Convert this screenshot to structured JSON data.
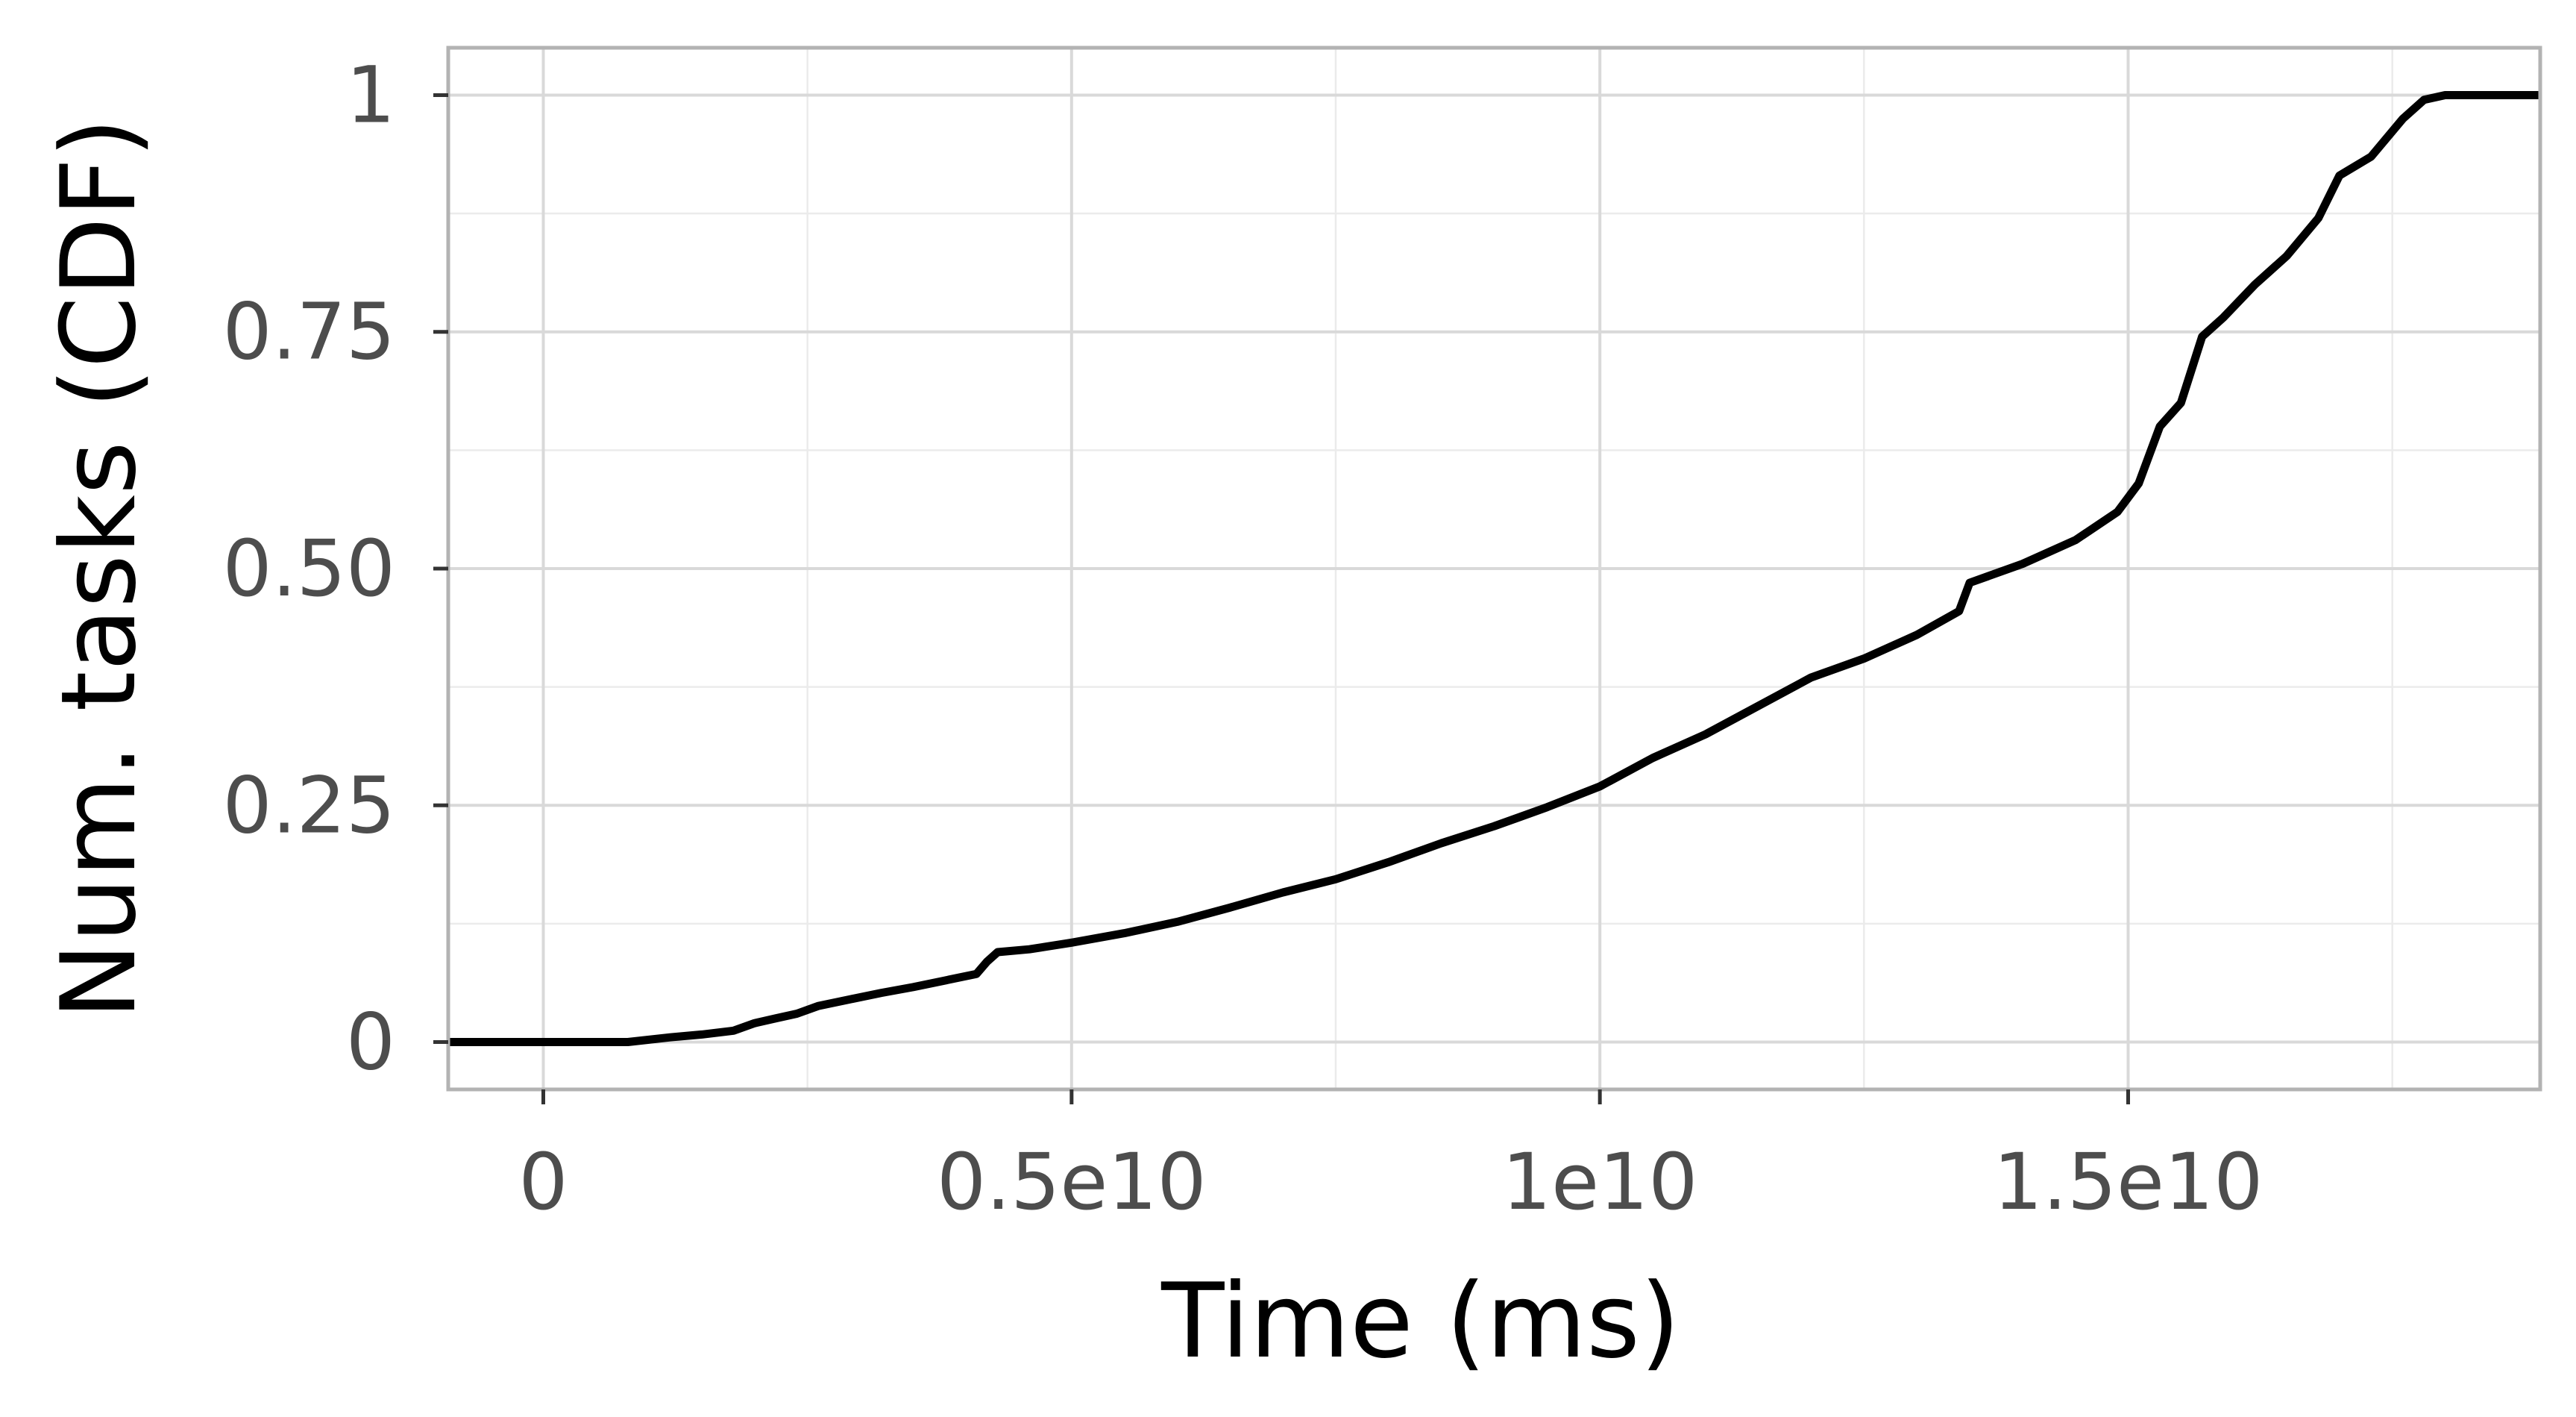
{
  "chart_data": {
    "type": "line",
    "xlabel": "Time (ms)",
    "ylabel": "Num. tasks (CDF)",
    "xlim": [
      -900000000,
      18900000000
    ],
    "ylim": [
      -0.05,
      1.05
    ],
    "grid": true,
    "x_ticks": [
      {
        "value": 0,
        "label": "0"
      },
      {
        "value": 5000000000,
        "label": "0.5e10"
      },
      {
        "value": 10000000000,
        "label": "1e10"
      },
      {
        "value": 15000000000,
        "label": "1.5e10"
      }
    ],
    "y_ticks": [
      {
        "value": 0,
        "label": "0"
      },
      {
        "value": 0.25,
        "label": "0.25"
      },
      {
        "value": 0.5,
        "label": "0.50"
      },
      {
        "value": 0.75,
        "label": "0.75"
      },
      {
        "value": 1,
        "label": "1"
      }
    ],
    "series": [
      {
        "color": "#000000",
        "points": [
          [
            -900000000,
            0
          ],
          [
            800000000,
            0
          ],
          [
            1200000000,
            0.005
          ],
          [
            1500000000,
            0.008
          ],
          [
            1800000000,
            0.012
          ],
          [
            2000000000,
            0.02
          ],
          [
            2200000000,
            0.025
          ],
          [
            2400000000,
            0.03
          ],
          [
            2600000000,
            0.038
          ],
          [
            2900000000,
            0.045
          ],
          [
            3200000000,
            0.052
          ],
          [
            3500000000,
            0.058
          ],
          [
            3800000000,
            0.065
          ],
          [
            4100000000,
            0.072
          ],
          [
            4200000000,
            0.085
          ],
          [
            4300000000,
            0.095
          ],
          [
            4600000000,
            0.098
          ],
          [
            5000000000,
            0.105
          ],
          [
            5500000000,
            0.115
          ],
          [
            6000000000,
            0.127
          ],
          [
            6500000000,
            0.142
          ],
          [
            7000000000,
            0.158
          ],
          [
            7500000000,
            0.172
          ],
          [
            8000000000,
            0.19
          ],
          [
            8500000000,
            0.21
          ],
          [
            9000000000,
            0.228
          ],
          [
            9500000000,
            0.248
          ],
          [
            10000000000,
            0.27
          ],
          [
            10500000000,
            0.3
          ],
          [
            11000000000,
            0.325
          ],
          [
            11500000000,
            0.355
          ],
          [
            12000000000,
            0.385
          ],
          [
            12500000000,
            0.405
          ],
          [
            13000000000,
            0.43
          ],
          [
            13400000000,
            0.455
          ],
          [
            13500000000,
            0.485
          ],
          [
            14000000000,
            0.505
          ],
          [
            14500000000,
            0.53
          ],
          [
            14900000000,
            0.56
          ],
          [
            15100000000,
            0.59
          ],
          [
            15300000000,
            0.65
          ],
          [
            15500000000,
            0.675
          ],
          [
            15700000000,
            0.745
          ],
          [
            15900000000,
            0.765
          ],
          [
            16200000000,
            0.8
          ],
          [
            16500000000,
            0.83
          ],
          [
            16800000000,
            0.87
          ],
          [
            17000000000,
            0.915
          ],
          [
            17300000000,
            0.935
          ],
          [
            17600000000,
            0.975
          ],
          [
            17800000000,
            0.995
          ],
          [
            18000000000,
            1
          ],
          [
            18900000000,
            1
          ]
        ]
      }
    ]
  }
}
